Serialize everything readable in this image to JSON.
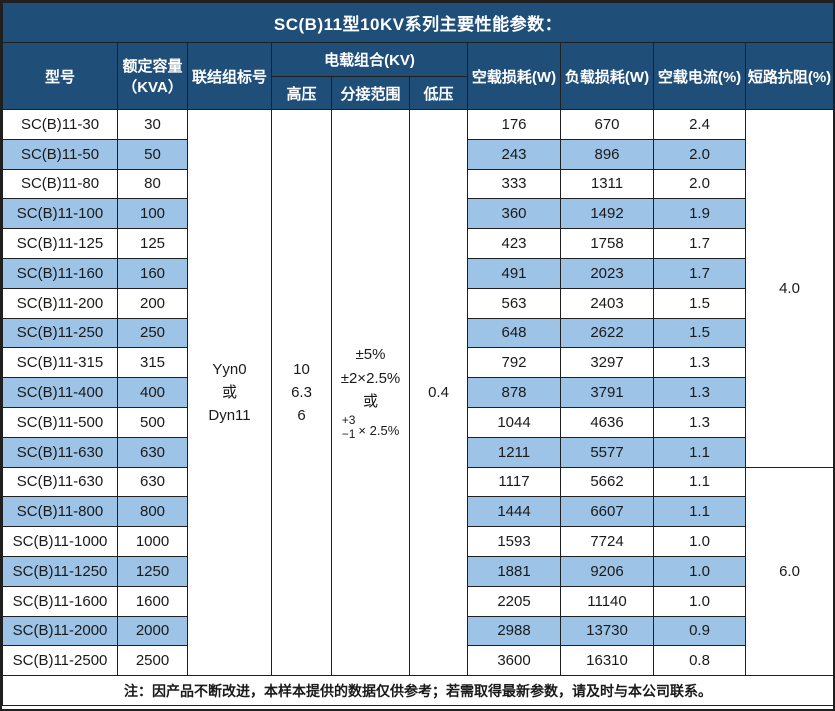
{
  "title": "SC(B)11型10KV系列主要性能参数：",
  "colors": {
    "header_bg": "#1F4E79",
    "stripe_bg": "#9DC3E6",
    "header_text": "#FFFFFF",
    "body_text": "#1A1A1A",
    "border": "#1F1F1F",
    "row_bg": "#FFFFFF"
  },
  "header": {
    "model": "型号",
    "capacity_line1": "额定容量",
    "capacity_line2": "（KVA）",
    "connection": "联结组标号",
    "voltage_group": "电载组合(KV)",
    "hv": "高压",
    "tap_range": "分接范围",
    "lv": "低压",
    "no_load_loss": "空载损耗(W)",
    "load_loss": "负载损耗(W)",
    "no_load_current": "空载电流(%)",
    "impedance": "短路抗阻(%)"
  },
  "merged": {
    "connection_lines": [
      "Yyn0",
      "或",
      "Dyn11"
    ],
    "hv_lines": [
      "10",
      "6.3",
      "6"
    ],
    "tap_lines": [
      "±5%",
      "±2×2.5%",
      "或"
    ],
    "tap_fraction": {
      "top": "+3",
      "bottom": "−1",
      "suffix": "× 2.5%"
    },
    "lv": "0.4",
    "impedance_groups": [
      {
        "value": "4.0",
        "rows": 12
      },
      {
        "value": "6.0",
        "rows": 7
      }
    ]
  },
  "rows": [
    {
      "model": "SC(B)11-30",
      "capacity": "30",
      "no_load_loss": "176",
      "load_loss": "670",
      "no_load_current": "2.4"
    },
    {
      "model": "SC(B)11-50",
      "capacity": "50",
      "no_load_loss": "243",
      "load_loss": "896",
      "no_load_current": "2.0"
    },
    {
      "model": "SC(B)11-80",
      "capacity": "80",
      "no_load_loss": "333",
      "load_loss": "1311",
      "no_load_current": "2.0"
    },
    {
      "model": "SC(B)11-100",
      "capacity": "100",
      "no_load_loss": "360",
      "load_loss": "1492",
      "no_load_current": "1.9"
    },
    {
      "model": "SC(B)11-125",
      "capacity": "125",
      "no_load_loss": "423",
      "load_loss": "1758",
      "no_load_current": "1.7"
    },
    {
      "model": "SC(B)11-160",
      "capacity": "160",
      "no_load_loss": "491",
      "load_loss": "2023",
      "no_load_current": "1.7"
    },
    {
      "model": "SC(B)11-200",
      "capacity": "200",
      "no_load_loss": "563",
      "load_loss": "2403",
      "no_load_current": "1.5"
    },
    {
      "model": "SC(B)11-250",
      "capacity": "250",
      "no_load_loss": "648",
      "load_loss": "2622",
      "no_load_current": "1.5"
    },
    {
      "model": "SC(B)11-315",
      "capacity": "315",
      "no_load_loss": "792",
      "load_loss": "3297",
      "no_load_current": "1.3"
    },
    {
      "model": "SC(B)11-400",
      "capacity": "400",
      "no_load_loss": "878",
      "load_loss": "3791",
      "no_load_current": "1.3"
    },
    {
      "model": "SC(B)11-500",
      "capacity": "500",
      "no_load_loss": "1044",
      "load_loss": "4636",
      "no_load_current": "1.3"
    },
    {
      "model": "SC(B)11-630",
      "capacity": "630",
      "no_load_loss": "1211",
      "load_loss": "5577",
      "no_load_current": "1.1"
    },
    {
      "model": "SC(B)11-630",
      "capacity": "630",
      "no_load_loss": "1117",
      "load_loss": "5662",
      "no_load_current": "1.1"
    },
    {
      "model": "SC(B)11-800",
      "capacity": "800",
      "no_load_loss": "1444",
      "load_loss": "6607",
      "no_load_current": "1.1"
    },
    {
      "model": "SC(B)11-1000",
      "capacity": "1000",
      "no_load_loss": "1593",
      "load_loss": "7724",
      "no_load_current": "1.0"
    },
    {
      "model": "SC(B)11-1250",
      "capacity": "1250",
      "no_load_loss": "1881",
      "load_loss": "9206",
      "no_load_current": "1.0"
    },
    {
      "model": "SC(B)11-1600",
      "capacity": "1600",
      "no_load_loss": "2205",
      "load_loss": "11140",
      "no_load_current": "1.0"
    },
    {
      "model": "SC(B)11-2000",
      "capacity": "2000",
      "no_load_loss": "2988",
      "load_loss": "13730",
      "no_load_current": "0.9"
    },
    {
      "model": "SC(B)11-2500",
      "capacity": "2500",
      "no_load_loss": "3600",
      "load_loss": "16310",
      "no_load_current": "0.8"
    }
  ],
  "note": "注：因产品不断改进，本样本提供的数据仅供参考；若需取得最新参数，请及时与本公司联系。"
}
